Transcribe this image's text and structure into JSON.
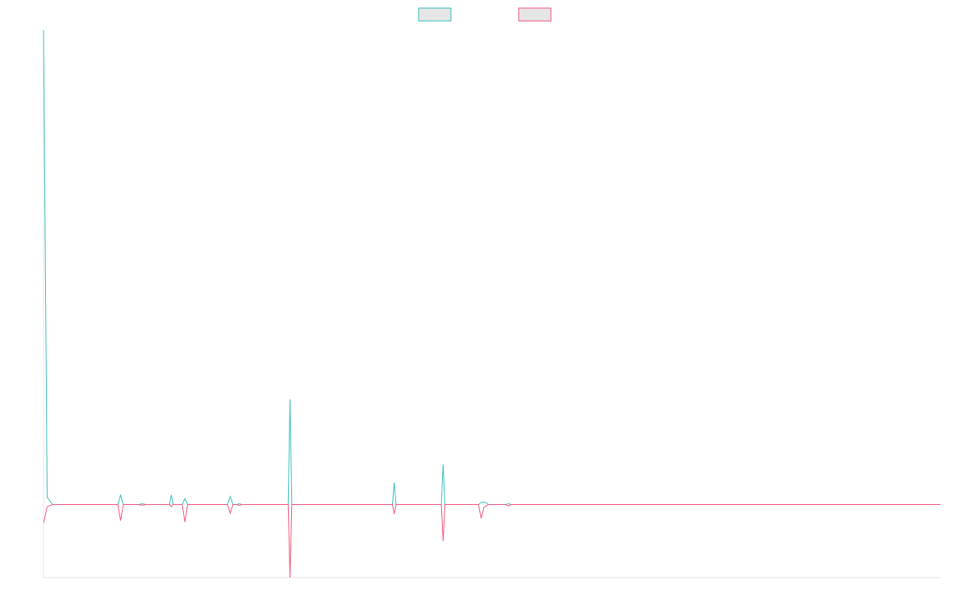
{
  "chart_data": {
    "type": "line",
    "title": "",
    "xlabel": "",
    "ylabel": "",
    "grid": false,
    "legend_position": "top-center",
    "xlim": [
      0,
      99
    ],
    "ylim": [
      -100,
      650
    ],
    "series": [
      {
        "name": "",
        "color": "#3bbfbf",
        "points": [
          [
            0,
            650
          ],
          [
            0.4,
            10
          ],
          [
            1,
            0
          ],
          [
            8.2,
            0
          ],
          [
            8.5,
            13
          ],
          [
            8.8,
            0
          ],
          [
            10.5,
            0
          ],
          [
            10.9,
            1
          ],
          [
            11.3,
            0
          ],
          [
            13.9,
            0
          ],
          [
            14.1,
            13
          ],
          [
            14.3,
            0
          ],
          [
            15.3,
            0
          ],
          [
            15.6,
            8
          ],
          [
            15.9,
            0
          ],
          [
            20.3,
            0
          ],
          [
            20.6,
            11
          ],
          [
            20.9,
            0
          ],
          [
            21.3,
            0
          ],
          [
            21.6,
            1
          ],
          [
            21.9,
            0
          ],
          [
            27.0,
            0
          ],
          [
            27.2,
            144
          ],
          [
            27.4,
            0
          ],
          [
            38.5,
            0
          ],
          [
            38.7,
            30
          ],
          [
            38.9,
            0
          ],
          [
            43.9,
            0
          ],
          [
            44.1,
            55
          ],
          [
            44.3,
            0
          ],
          [
            48.0,
            0
          ],
          [
            48.3,
            3
          ],
          [
            48.8,
            3
          ],
          [
            49.1,
            0
          ],
          [
            51.0,
            0
          ],
          [
            51.3,
            1
          ],
          [
            51.6,
            0
          ],
          [
            99,
            0
          ]
        ]
      },
      {
        "name": "",
        "color": "#f0577e",
        "points": [
          [
            0,
            -25
          ],
          [
            0.4,
            -3
          ],
          [
            1,
            0
          ],
          [
            8.2,
            0
          ],
          [
            8.5,
            -22
          ],
          [
            8.8,
            0
          ],
          [
            10.5,
            0
          ],
          [
            10.9,
            -1
          ],
          [
            11.3,
            0
          ],
          [
            13.9,
            0
          ],
          [
            14.1,
            -3
          ],
          [
            14.3,
            0
          ],
          [
            15.3,
            0
          ],
          [
            15.6,
            -24
          ],
          [
            15.9,
            0
          ],
          [
            20.3,
            0
          ],
          [
            20.6,
            -12
          ],
          [
            20.9,
            0
          ],
          [
            21.3,
            0
          ],
          [
            21.6,
            -1
          ],
          [
            21.9,
            0
          ],
          [
            27.0,
            0
          ],
          [
            27.2,
            -100
          ],
          [
            27.4,
            0
          ],
          [
            38.5,
            0
          ],
          [
            38.7,
            -13
          ],
          [
            38.9,
            0
          ],
          [
            43.9,
            0
          ],
          [
            44.1,
            -50
          ],
          [
            44.3,
            0
          ],
          [
            48.0,
            0
          ],
          [
            48.3,
            -19
          ],
          [
            48.6,
            -4
          ],
          [
            49.1,
            0
          ],
          [
            51.0,
            0
          ],
          [
            51.3,
            -2
          ],
          [
            51.6,
            0
          ],
          [
            99,
            0
          ]
        ]
      }
    ]
  }
}
